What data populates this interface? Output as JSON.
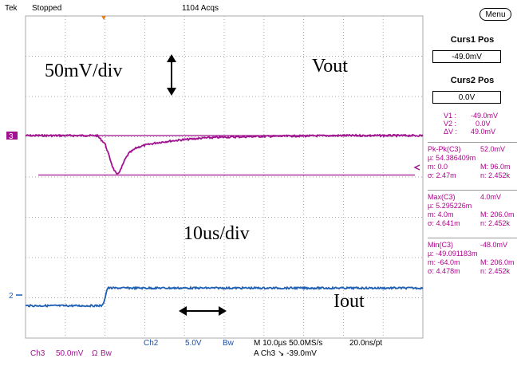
{
  "header": {
    "brand": "Tek",
    "run_state": "Stopped",
    "acquisitions": "1104 Acqs"
  },
  "annotations": {
    "volts_per_div": "50mV/div",
    "time_per_div": "10us/div",
    "vout_label": "Vout",
    "iout_label": "Iout"
  },
  "markers": {
    "ch3_marker": "3",
    "ch2_marker": "2"
  },
  "side_panel": {
    "menu_label": "Menu",
    "curs1_title": "Curs1 Pos",
    "curs1_value": "-49.0mV",
    "curs2_title": "Curs2 Pos",
    "curs2_value": "0.0V",
    "readouts": [
      {
        "name": "V1 :",
        "value": "-49.0mV"
      },
      {
        "name": "V2 :",
        "value": "0.0V"
      },
      {
        "name": "ΔV :",
        "value": "49.0mV"
      }
    ],
    "stats": [
      {
        "rows": [
          [
            "Pk-Pk(C3)",
            "52.0mV"
          ],
          [
            "µ: 54.386409m",
            ""
          ],
          [
            "m: 0.0",
            "M: 96.0m"
          ],
          [
            "σ: 2.47m",
            "n: 2.452k"
          ]
        ]
      },
      {
        "rows": [
          [
            "Max(C3)",
            "4.0mV"
          ],
          [
            "µ: 5.295226m",
            ""
          ],
          [
            "m: 4.0m",
            "M: 206.0m"
          ],
          [
            "σ: 4.641m",
            "n: 2.452k"
          ]
        ]
      },
      {
        "rows": [
          [
            "Min(C3)",
            "-48.0mV"
          ],
          [
            "µ: -49.091183m",
            ""
          ],
          [
            "m: -64.0m",
            "M: 206.0m"
          ],
          [
            "σ: 4.478m",
            "n: 2.452k"
          ]
        ]
      }
    ]
  },
  "footer": {
    "ch3_label": "Ch3",
    "ch3_scale": "50.0mV",
    "ch3_coupling": "Ω",
    "ch3_bw": "Bw",
    "ch2_label": "Ch2",
    "ch2_scale": "5.0V",
    "ch2_bw": "Bw",
    "timebase": "M 10.0µs 50.0MS/s",
    "resolution": "20.0ns/pt",
    "trigger": "A  Ch3  ↘  -39.0mV"
  },
  "colors": {
    "ch3": "#a0128f",
    "ch2": "#1e5fb4",
    "grid": "#a8a8a8",
    "text_blue": "#1e4fa8"
  },
  "chart_data": {
    "type": "line",
    "x_unit": "µs",
    "xlim": [
      0,
      100
    ],
    "divisions": {
      "x": 10,
      "y": 8
    },
    "grid": true,
    "series": [
      {
        "name": "Vout",
        "channel": "Ch3",
        "unit": "mV",
        "x": [
          0,
          10,
          18,
          20,
          21,
          22,
          23,
          24,
          25,
          26,
          28,
          30,
          33,
          36,
          40,
          45,
          50,
          55,
          60,
          70,
          80,
          90,
          100
        ],
        "y": [
          0,
          0,
          0,
          -10,
          -25,
          -40,
          -49,
          -42,
          -30,
          -22,
          -15,
          -12,
          -9,
          -7,
          -5,
          -3,
          -2,
          -1.5,
          -1,
          -0.5,
          0,
          0,
          0
        ]
      },
      {
        "name": "Iout",
        "channel": "Ch2",
        "unit": "V",
        "x": [
          0,
          10,
          19.4,
          20,
          20.6,
          30,
          40,
          50,
          60,
          70,
          80,
          90,
          100
        ],
        "y": [
          -0.55,
          -0.55,
          -0.55,
          0.1,
          0.9,
          0.9,
          0.9,
          0.9,
          0.9,
          0.9,
          0.9,
          0.9,
          0.9
        ]
      }
    ],
    "cursors": [
      {
        "name": "Curs1",
        "y": -49.0,
        "unit": "mV"
      },
      {
        "name": "Curs2",
        "y": 0.0,
        "unit": "mV"
      }
    ]
  }
}
